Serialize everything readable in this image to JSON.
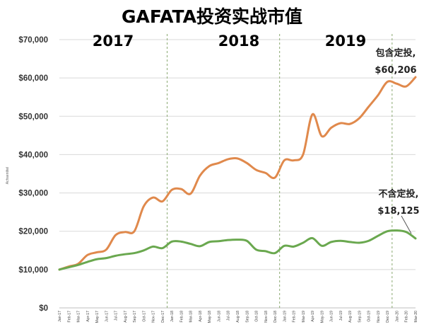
{
  "chart_data": {
    "type": "line",
    "title": "GAFATA投资实战市值",
    "ylabel": "Achsentitel",
    "ylim": [
      0,
      70000
    ],
    "yticks": [
      "$0",
      "$10,000",
      "$20,000",
      "$30,000",
      "$40,000",
      "$50,000",
      "$60,000",
      "$70,000"
    ],
    "categories": [
      "Jan-17",
      "Feb-17",
      "Mar-17",
      "Apr-17",
      "May-17",
      "Jun-17",
      "Jul-17",
      "Aug-17",
      "Sep-17",
      "Oct-17",
      "Nov-17",
      "Dec-17",
      "Jan-18",
      "Feb-18",
      "Mar-18",
      "Apr-18",
      "May-18",
      "Jun-18",
      "Jul-18",
      "Aug-18",
      "Sep-18",
      "Oct-18",
      "Nov-18",
      "Dec-18",
      "Jan-19",
      "Feb-19",
      "Mar-19",
      "Apr-19",
      "May-19",
      "Jun-19",
      "Jul-19",
      "Aug-19",
      "Sep-19",
      "Oct-19",
      "Nov-19",
      "Dec-19",
      "Jan-20",
      "Feb-20",
      "Mar-20"
    ],
    "year_labels": [
      "2017",
      "2018",
      "2019"
    ],
    "grid": true,
    "series": [
      {
        "name": "包含定投",
        "color": "#e0894c",
        "values": [
          10000,
          10800,
          11500,
          13800,
          14500,
          15200,
          19000,
          19800,
          20000,
          26500,
          28800,
          27800,
          30800,
          31000,
          29800,
          34500,
          37000,
          37800,
          38800,
          39000,
          37800,
          36000,
          35200,
          34000,
          38500,
          38500,
          40000,
          50500,
          44800,
          47000,
          48200,
          48000,
          49500,
          52500,
          55500,
          59000,
          58500,
          57800,
          60206
        ]
      },
      {
        "name": "不含定投",
        "color": "#6aa84f",
        "values": [
          10000,
          10600,
          11200,
          12000,
          12700,
          13000,
          13600,
          14000,
          14300,
          15000,
          16000,
          15600,
          17300,
          17300,
          16700,
          16100,
          17200,
          17400,
          17700,
          17800,
          17500,
          15200,
          14800,
          14300,
          16200,
          16000,
          17000,
          18200,
          16200,
          17200,
          17500,
          17200,
          17000,
          17500,
          18800,
          20000,
          20200,
          19800,
          18125
        ]
      }
    ],
    "annotations": [
      {
        "series": 0,
        "label": "包含定投,",
        "value_text": "$60,206"
      },
      {
        "series": 1,
        "label": "不含定投,",
        "value_text": "$18,125"
      }
    ]
  }
}
